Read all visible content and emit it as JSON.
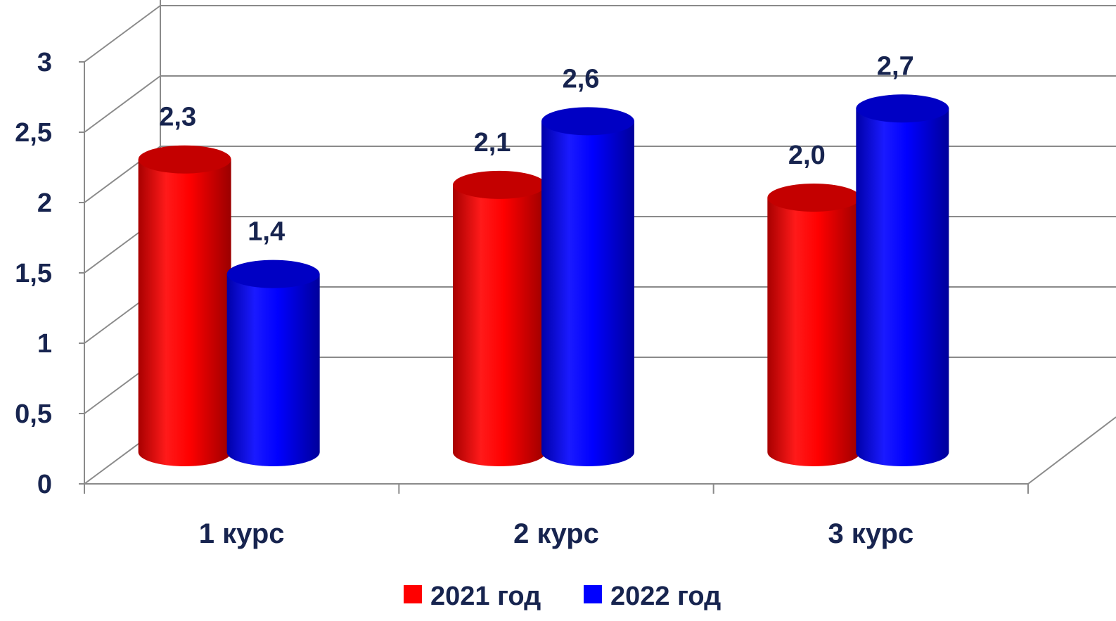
{
  "chart_data": {
    "type": "bar",
    "categories": [
      "1 курс",
      "2 курс",
      "3 курс"
    ],
    "series": [
      {
        "name": "2021 год",
        "values": [
          2.3,
          2.1,
          2.0
        ],
        "labels": [
          "2,3",
          "2,1",
          "2,0"
        ],
        "color": "#ff0000"
      },
      {
        "name": "2022 год",
        "values": [
          1.4,
          2.6,
          2.7
        ],
        "labels": [
          "1,4",
          "2,6",
          "2,7"
        ],
        "color": "#0000ff"
      }
    ],
    "ylim": [
      0,
      3
    ],
    "yticks": [
      0,
      0.5,
      1,
      1.5,
      2,
      2.5,
      3
    ],
    "ytick_labels": [
      "0",
      "0,5",
      "1",
      "1,5",
      "2",
      "2,5",
      "3"
    ],
    "grid": true,
    "legend": "bottom",
    "style": "3d-cylinder"
  }
}
